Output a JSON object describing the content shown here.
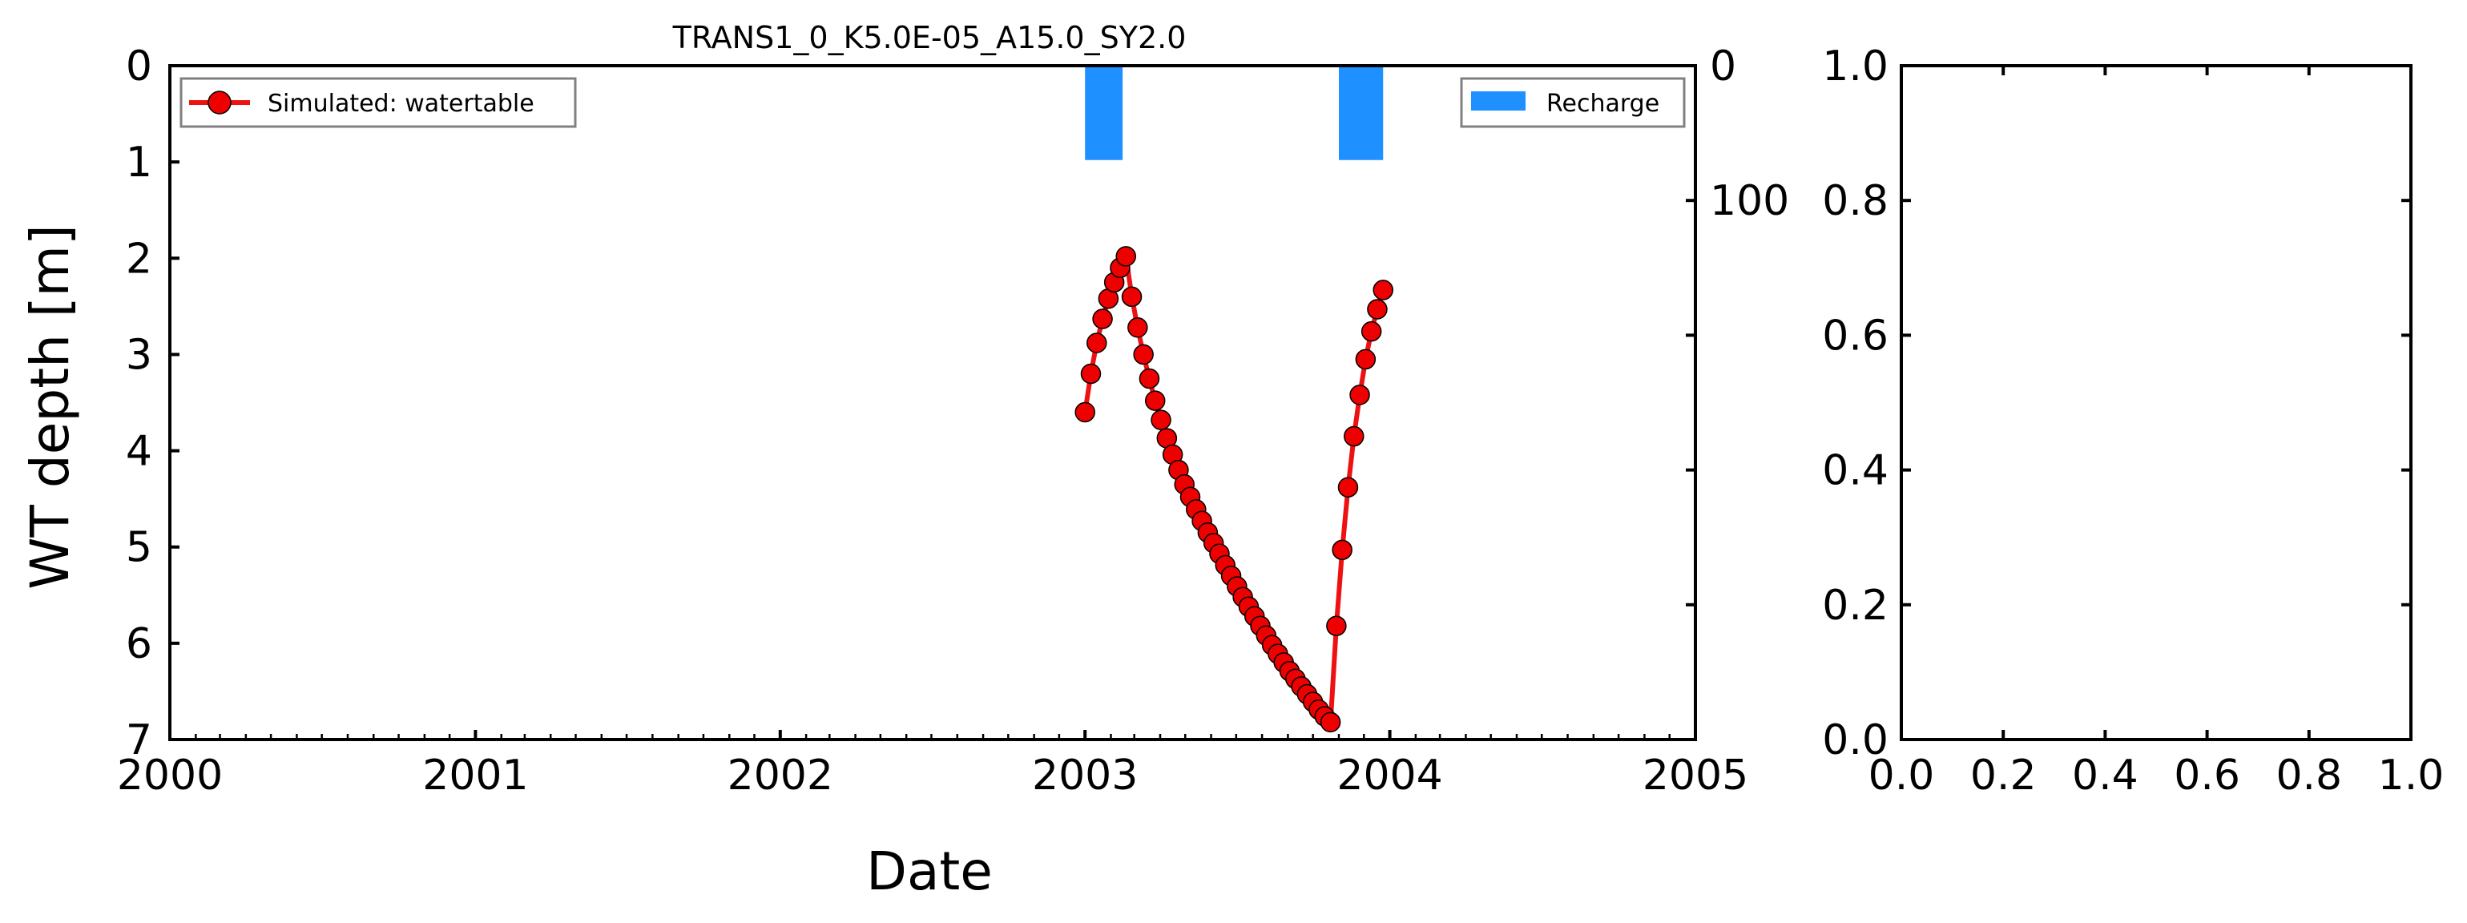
{
  "chart_data": [
    {
      "type": "line",
      "title": "TRANS1_0_K5.0E-05_A15.0_SY2.0",
      "xlabel": "Date",
      "ylabel": "WT depth [m]",
      "xlim": [
        "2000-01-01",
        "2005-01-01"
      ],
      "ylim": [
        7,
        0
      ],
      "y_inverted": true,
      "x_tick_labels": [
        "2000",
        "2001",
        "2002",
        "2003",
        "2004",
        "2005"
      ],
      "y_tick_labels": [
        "0",
        "1",
        "2",
        "3",
        "4",
        "5",
        "6",
        "7"
      ],
      "x_minor_ticks": "monthly",
      "grid": false,
      "colors": {
        "line": "#ee1111",
        "marker_face": "#ee0000",
        "marker_edge": "#000000"
      },
      "series": [
        {
          "name": "Simulated: watertable",
          "x": [
            "2003-01-01",
            "2003-01-08",
            "2003-01-15",
            "2003-01-22",
            "2003-01-29",
            "2003-02-05",
            "2003-02-12",
            "2003-02-19",
            "2003-02-26",
            "2003-03-05",
            "2003-03-12",
            "2003-03-19",
            "2003-03-26",
            "2003-04-02",
            "2003-04-09",
            "2003-04-16",
            "2003-04-23",
            "2003-04-30",
            "2003-05-07",
            "2003-05-14",
            "2003-05-21",
            "2003-05-28",
            "2003-06-04",
            "2003-06-11",
            "2003-06-18",
            "2003-06-25",
            "2003-07-02",
            "2003-07-09",
            "2003-07-16",
            "2003-07-23",
            "2003-07-30",
            "2003-08-06",
            "2003-08-13",
            "2003-08-20",
            "2003-08-27",
            "2003-09-03",
            "2003-09-10",
            "2003-09-17",
            "2003-09-24",
            "2003-10-01",
            "2003-10-08",
            "2003-10-15",
            "2003-10-22",
            "2003-10-29",
            "2003-11-05",
            "2003-11-12",
            "2003-11-19",
            "2003-11-26",
            "2003-12-03",
            "2003-12-10",
            "2003-12-17",
            "2003-12-24"
          ],
          "y": [
            3.6,
            3.2,
            2.88,
            2.63,
            2.42,
            2.25,
            2.1,
            1.98,
            2.4,
            2.72,
            3.0,
            3.25,
            3.48,
            3.68,
            3.87,
            4.04,
            4.2,
            4.35,
            4.48,
            4.61,
            4.73,
            4.85,
            4.96,
            5.07,
            5.19,
            5.3,
            5.41,
            5.52,
            5.62,
            5.72,
            5.82,
            5.92,
            6.02,
            6.11,
            6.2,
            6.29,
            6.37,
            6.45,
            6.53,
            6.61,
            6.69,
            6.76,
            6.82,
            5.82,
            5.03,
            4.38,
            3.85,
            3.42,
            3.05,
            2.76,
            2.53,
            2.33
          ]
        }
      ]
    },
    {
      "type": "bar",
      "xlim": [
        "2000-01-01",
        "2005-01-01"
      ],
      "ylim": [
        1000,
        0
      ],
      "y_inverted": true,
      "y_tick_labels": [
        "0",
        "100"
      ],
      "grid": false,
      "colors": {
        "bar": "#1e90ff"
      },
      "series": [
        {
          "name": "Recharge",
          "bars": [
            {
              "start": "2003-01-01",
              "end": "2003-02-15",
              "value": 140
            },
            {
              "start": "2003-11-01",
              "end": "2003-12-24",
              "value": 140
            }
          ]
        }
      ]
    },
    {
      "type": "line",
      "xlim": [
        0.0,
        1.0
      ],
      "ylim": [
        0.0,
        1.0
      ],
      "x_tick_labels": [
        "0.0",
        "0.2",
        "0.4",
        "0.6",
        "0.8",
        "1.0"
      ],
      "y_tick_labels": [
        "0.0",
        "0.2",
        "0.4",
        "0.6",
        "0.8",
        "1.0"
      ],
      "grid": false,
      "series": []
    }
  ]
}
